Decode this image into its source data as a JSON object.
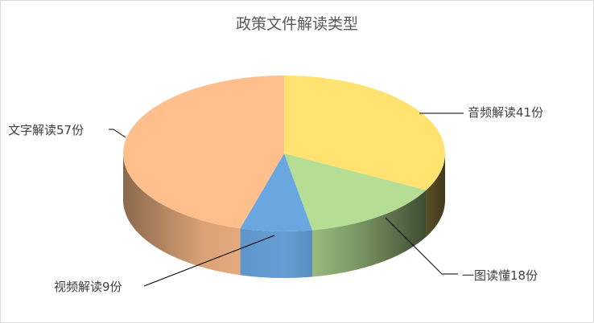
{
  "chart_data": {
    "type": "pie",
    "variant": "3d",
    "title": "政策文件解读类型",
    "slices": [
      {
        "name": "音频解读",
        "value": 41,
        "label": "音频解读41份",
        "color": "#FFE26F"
      },
      {
        "name": "一图读懂",
        "value": 18,
        "label": "一图读懂18份",
        "color": "#B5DE94"
      },
      {
        "name": "视频解读",
        "value": 9,
        "label": "视频解读9份",
        "color": "#6AA6E0"
      },
      {
        "name": "文字解读",
        "value": 57,
        "label": "文字解读57份",
        "color": "#FFBF8C"
      }
    ],
    "legend": "none"
  }
}
